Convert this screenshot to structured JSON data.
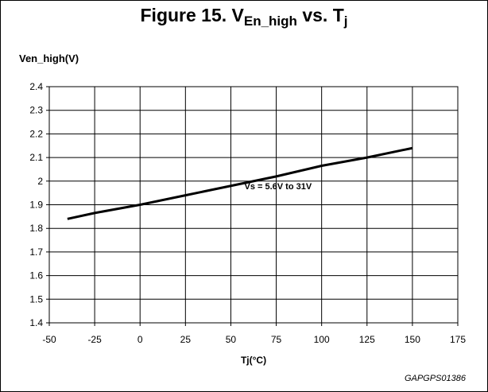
{
  "figure": {
    "title_main": "Figure 15. V",
    "title_sub": "En_high",
    "title_mid": " vs. T",
    "title_sub2": "j",
    "footer_id": "GAPGPS01386"
  },
  "chart_data": {
    "type": "line",
    "title": "Figure 15. VEn_high vs. Tj",
    "xlabel": "Tj(°C)",
    "ylabel": "Ven_high(V)",
    "xlim": [
      -50,
      175
    ],
    "ylim": [
      1.4,
      2.4
    ],
    "xticks": [
      -50,
      -25,
      0,
      25,
      50,
      75,
      100,
      125,
      150,
      175
    ],
    "yticks": [
      1.4,
      1.5,
      1.6,
      1.7,
      1.8,
      1.9,
      2,
      2.1,
      2.2,
      2.3,
      2.4
    ],
    "grid": true,
    "series": [
      {
        "x": [
          -40,
          -25,
          0,
          25,
          50,
          75,
          100,
          125,
          150
        ],
        "y": [
          1.84,
          1.865,
          1.9,
          1.94,
          1.98,
          2.02,
          2.065,
          2.1,
          2.14
        ]
      }
    ],
    "annotations": [
      {
        "text": "Vs = 5.6V to 31V",
        "x": 76,
        "y": 1.965
      }
    ]
  }
}
